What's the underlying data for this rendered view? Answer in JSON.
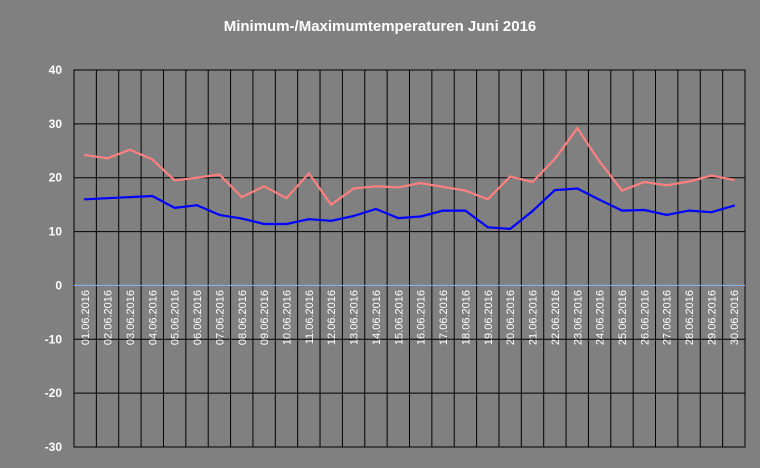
{
  "chart_data": {
    "type": "line",
    "title": "Minimum-/Maximumtemperaturen Juni 2016",
    "xlabel": "",
    "ylabel": "",
    "ylim": [
      -30,
      40
    ],
    "yticks": [
      40,
      30,
      20,
      10,
      0,
      -10,
      -20,
      -30
    ],
    "grid": true,
    "legend": "none",
    "categories": [
      "01.06.2016",
      "02.06.2016",
      "03.06.2016",
      "04.06.2016",
      "05.06.2016",
      "06.06.2016",
      "07.06.2016",
      "08.06.2016",
      "09.06.2016",
      "10.06.2016",
      "11.06.2016",
      "12.06.2016",
      "13.06.2016",
      "14.06.2016",
      "15.06.2016",
      "16.06.2016",
      "17.06.2016",
      "18.06.2016",
      "19.06.2016",
      "20.06.2016",
      "21.06.2016",
      "22.06.2016",
      "23.06.2016",
      "24.06.2016",
      "25.06.2016",
      "26.06.2016",
      "27.06.2016",
      "28.06.2016",
      "29.06.2016",
      "30.06.2016"
    ],
    "series": [
      {
        "values": [
          24.2,
          23.6,
          25.2,
          23.4,
          19.5,
          20.0,
          20.6,
          16.4,
          18.4,
          16.2,
          20.8,
          15.0,
          18.0,
          18.4,
          18.2,
          19.0,
          18.3,
          17.6,
          16.0,
          20.2,
          19.2,
          23.5,
          29.2,
          23.0,
          17.6,
          19.2,
          18.6,
          19.3,
          20.4,
          19.6
        ],
        "color": "#ff8080"
      },
      {
        "values": [
          16.0,
          16.2,
          16.4,
          16.6,
          14.4,
          14.9,
          13.1,
          12.4,
          11.4,
          11.4,
          12.3,
          12.0,
          12.9,
          14.2,
          12.5,
          12.8,
          13.9,
          13.9,
          10.8,
          10.5,
          13.8,
          17.7,
          18.0,
          15.9,
          13.9,
          14.0,
          13.1,
          13.9,
          13.6,
          14.8
        ],
        "color": "#0000ff"
      }
    ]
  },
  "colors": {
    "background": "#808080",
    "grid": "#000000",
    "zero_line": "#8fb3ff",
    "text": "#ffffff"
  }
}
